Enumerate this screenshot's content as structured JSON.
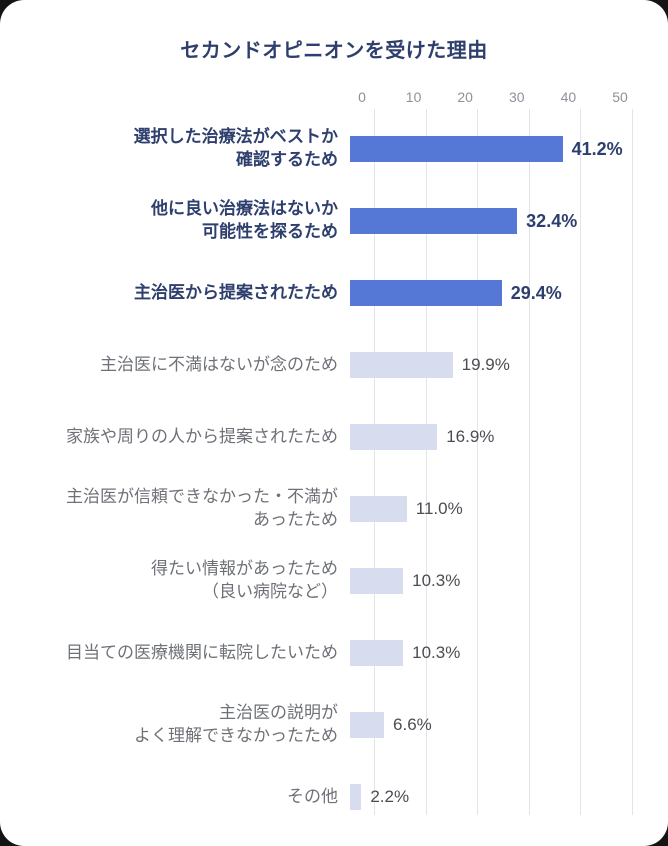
{
  "chart_data": {
    "type": "bar",
    "orientation": "horizontal",
    "title": "セカンドオピニオンを受けた理由",
    "xlabel": "",
    "ylabel": "",
    "xlim": [
      0,
      50
    ],
    "ticks": [
      "0",
      "10",
      "20",
      "30",
      "40",
      "50"
    ],
    "grid": true,
    "colors": {
      "bar_emphasis": "#5577d6",
      "bar_default": "#d7dcee",
      "label_emphasis": "#2e3f6e",
      "label_default": "#6e7177",
      "pct_default": "#4a4d52",
      "gridline": "#e3e4ea",
      "tick_text": "#8d9199"
    },
    "rows": [
      {
        "label": "選択した治療法がベストか\n確認するため",
        "value": 41.2,
        "display": "41.2%",
        "emphasis": true
      },
      {
        "label": "他に良い治療法はないか\n可能性を探るため",
        "value": 32.4,
        "display": "32.4%",
        "emphasis": true
      },
      {
        "label": "主治医から提案されたため",
        "value": 29.4,
        "display": "29.4%",
        "emphasis": true
      },
      {
        "label": "主治医に不満はないが念のため",
        "value": 19.9,
        "display": "19.9%",
        "emphasis": false
      },
      {
        "label": "家族や周りの人から提案されたため",
        "value": 16.9,
        "display": "16.9%",
        "emphasis": false
      },
      {
        "label": "主治医が信頼できなかった・不満が\nあったため",
        "value": 11.0,
        "display": "11.0%",
        "emphasis": false
      },
      {
        "label": "得たい情報があったため\n（良い病院など）",
        "value": 10.3,
        "display": "10.3%",
        "emphasis": false
      },
      {
        "label": "目当ての医療機関に転院したいため",
        "value": 10.3,
        "display": "10.3%",
        "emphasis": false
      },
      {
        "label": "主治医の説明が\nよく理解できなかったため",
        "value": 6.6,
        "display": "6.6%",
        "emphasis": false
      },
      {
        "label": "その他",
        "value": 2.2,
        "display": "2.2%",
        "emphasis": false
      }
    ]
  }
}
